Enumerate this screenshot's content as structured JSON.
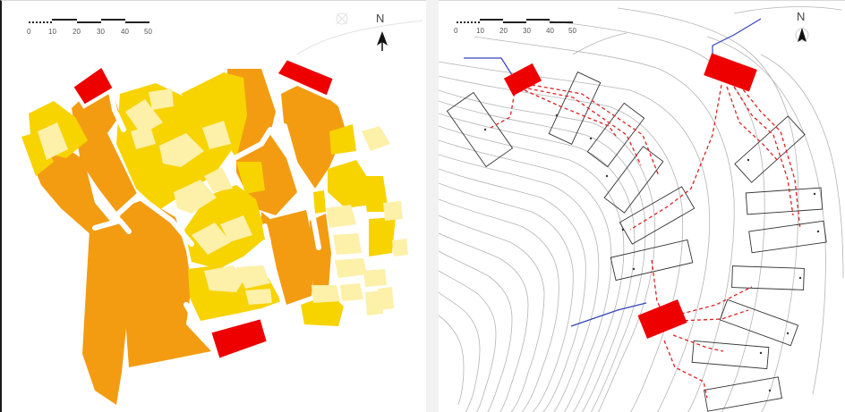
{
  "left_map": {
    "scale_bar": {
      "ticks": [
        "0",
        "10",
        "20",
        "30",
        "40",
        "50"
      ]
    },
    "north_label": "N",
    "colors": {
      "dark_orange": "#f39c12",
      "yellow": "#f7d300",
      "pale_yellow": "#fdf0a8",
      "red": "#ee0000"
    }
  },
  "right_map": {
    "scale_bar": {
      "ticks": [
        "0",
        "10",
        "20",
        "30",
        "40",
        "50"
      ]
    },
    "north_label": "N",
    "colors": {
      "contour": "#b4b4b4",
      "building_outline": "#333333",
      "path": "#dd2222",
      "connector": "#3344bb",
      "red": "#ee0000"
    }
  }
}
